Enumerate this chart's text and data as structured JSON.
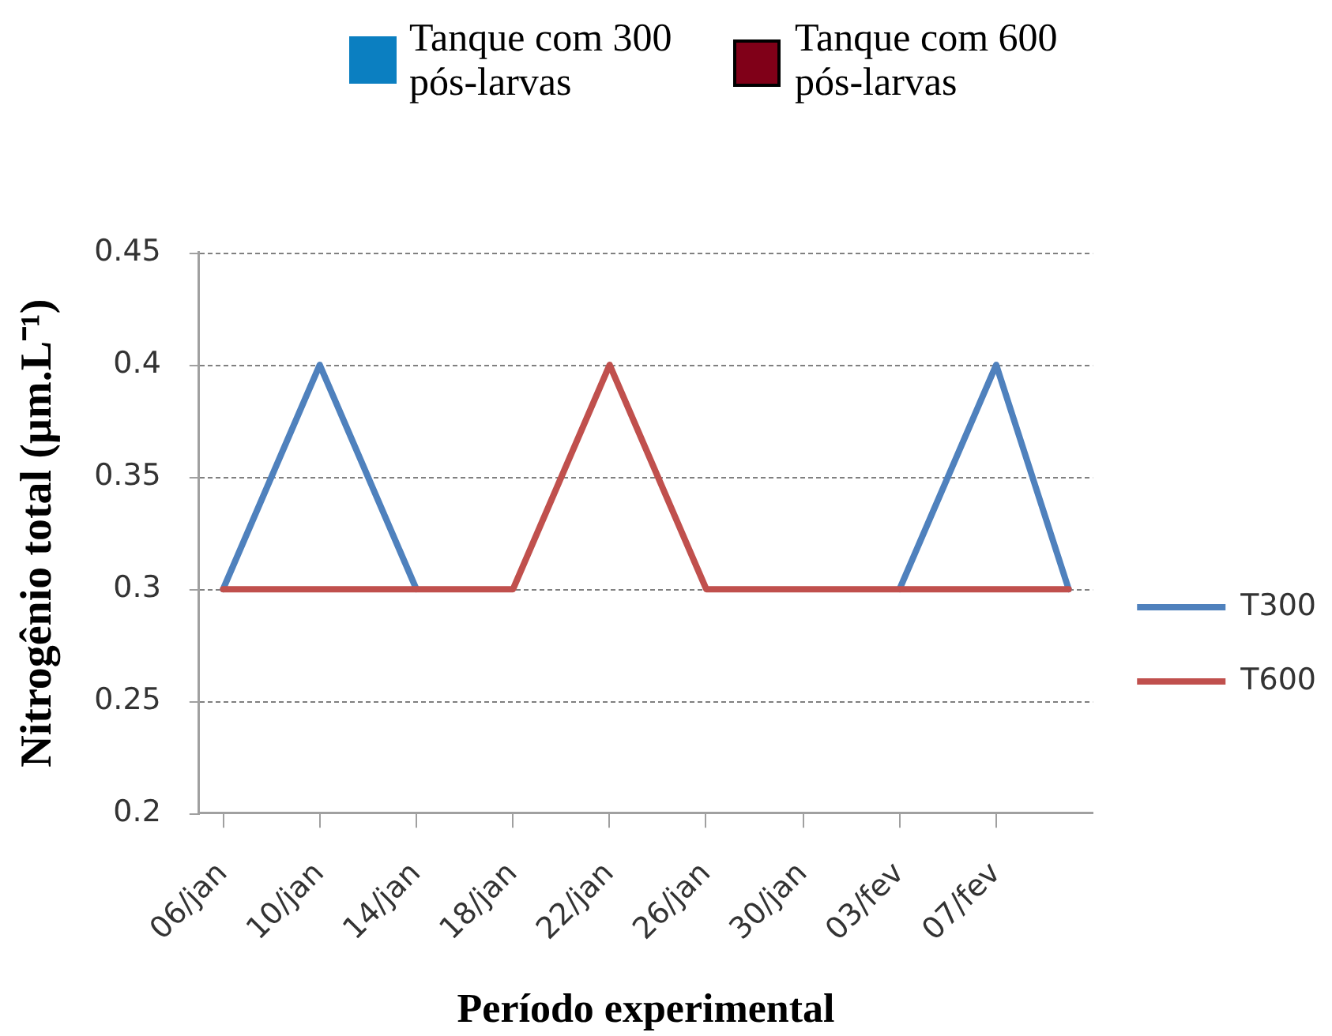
{
  "chart_data": {
    "type": "line",
    "xlabel": "Período experimental",
    "ylabel": "Nitrogênio total (µm.L⁻¹)",
    "annotations": [
      "Tanque com 300 pós-larvas",
      "Tanque com 600 pós-larvas"
    ],
    "x": [
      "--01-06",
      "--01-10",
      "--01-14",
      "--01-18",
      "--01-22",
      "--01-26",
      "--01-30",
      "--02-03",
      "--02-07",
      "--02-10"
    ],
    "series": [
      {
        "name": "T300",
        "color": "#4f81bd",
        "values": [
          0.3,
          0.4,
          0.3,
          null,
          null,
          null,
          null,
          0.3,
          0.4,
          0.3
        ]
      },
      {
        "name": "T600",
        "color": "#c0504d",
        "values": [
          0.3,
          0.3,
          0.3,
          0.3,
          0.4,
          0.3,
          0.3,
          0.3,
          0.3,
          0.3
        ]
      }
    ],
    "xlim": [
      "--01-05",
      "--02-11"
    ],
    "xticks": [
      {
        "value": "--01-06",
        "label": "06/jan"
      },
      {
        "value": "--01-10",
        "label": "10/jan"
      },
      {
        "value": "--01-14",
        "label": "14/jan"
      },
      {
        "value": "--01-18",
        "label": "18/jan"
      },
      {
        "value": "--01-22",
        "label": "22/jan"
      },
      {
        "value": "--01-26",
        "label": "26/jan"
      },
      {
        "value": "--01-30",
        "label": "30/jan"
      },
      {
        "value": "--02-03",
        "label": "03/fev"
      },
      {
        "value": "--02-07",
        "label": "07/fev"
      }
    ],
    "ylim": [
      0.2,
      0.45
    ],
    "yticks": [
      0.2,
      0.25,
      0.3,
      0.35,
      0.4,
      0.45
    ],
    "grid": "y",
    "legend": "right",
    "marker": "none",
    "line_style": "solid"
  }
}
